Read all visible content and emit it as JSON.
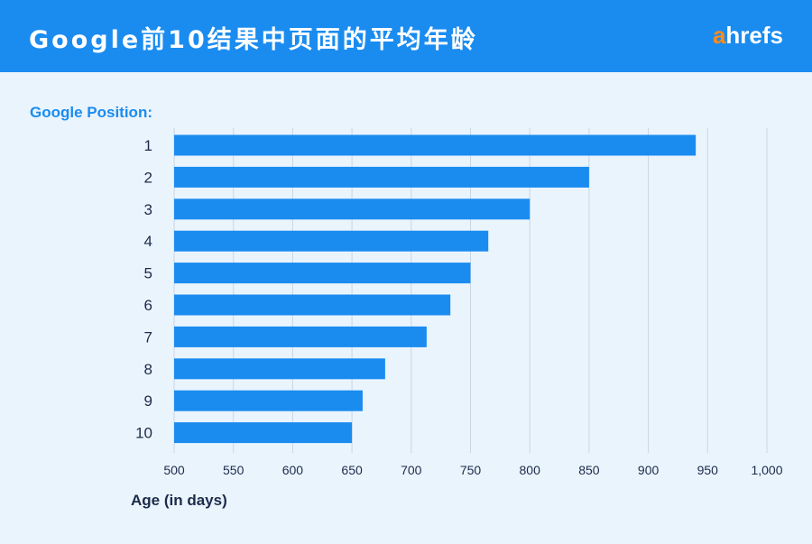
{
  "header": {
    "title": "Google前10结果中页面的平均年龄",
    "brand_accent": "a",
    "brand_rest": "hrefs"
  },
  "colors": {
    "header_bg": "#1a8cf0",
    "bar": "#1a8cf0",
    "background": "#eaf4fd",
    "brand_orange": "#ff8c1a"
  },
  "chart_data": {
    "type": "bar",
    "orientation": "horizontal",
    "categories": [
      "1",
      "2",
      "3",
      "4",
      "5",
      "6",
      "7",
      "8",
      "9",
      "10"
    ],
    "values": [
      940,
      850,
      800,
      765,
      750,
      733,
      713,
      678,
      659,
      650
    ],
    "ylabel": "Google Position:",
    "xlabel": "Age (in days)",
    "xlim": [
      500,
      1000
    ],
    "xticks": [
      "500",
      "550",
      "600",
      "650",
      "700",
      "750",
      "800",
      "850",
      "900",
      "950",
      "1,000"
    ],
    "grid": true
  }
}
